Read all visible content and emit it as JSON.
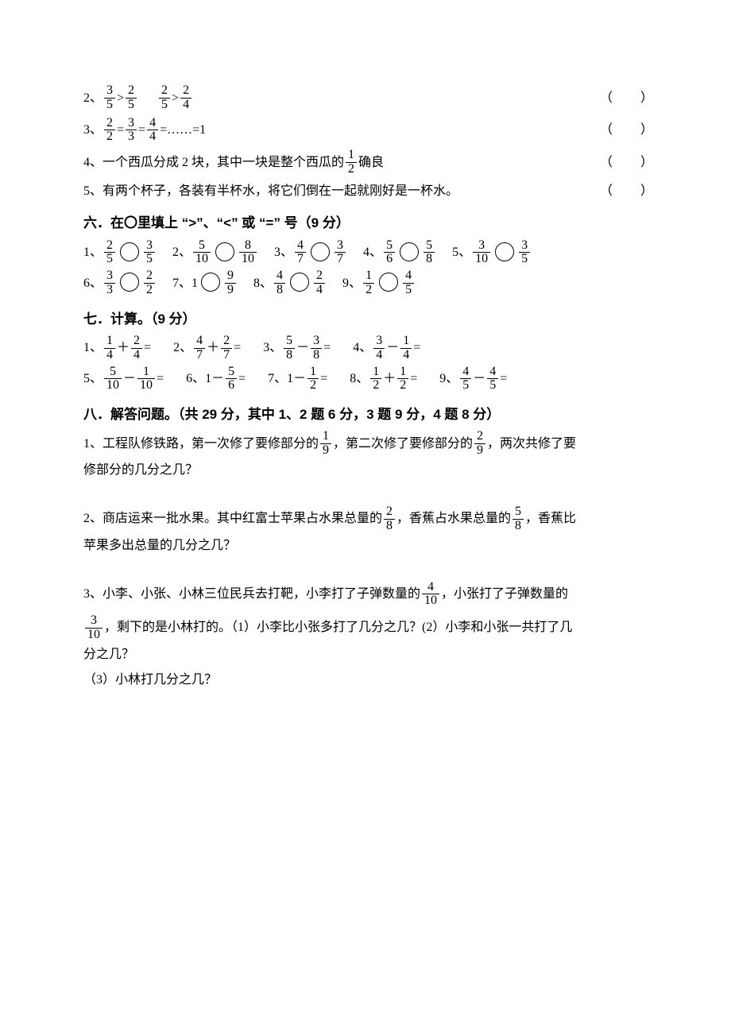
{
  "tf": {
    "q2_label": "2、",
    "q2_a_num": "3",
    "q2_a_den": "5",
    "q2_op1": ">",
    "q2_b_num": "2",
    "q2_b_den": "5",
    "q2_c_num": "2",
    "q2_c_den": "5",
    "q2_op2": ">",
    "q2_d_num": "2",
    "q2_d_den": "4",
    "q3_label": "3、",
    "q3_a_num": "2",
    "q3_a_den": "2",
    "q3_b_num": "3",
    "q3_b_den": "3",
    "q3_c_num": "4",
    "q3_c_den": "4",
    "q3_tail": "=……=1",
    "q3_eq": "=",
    "q4_label": "4、",
    "q4_text_a": "一个西瓜分成 2 块，其中一块是整个西瓜的",
    "q4_num": "1",
    "q4_den": "2",
    "q4_text_b": "确良",
    "q5_label": "5、",
    "q5_text": "有两个杯子，各装有半杯水，将它们倒在一起就刚好是一杯水。"
  },
  "s6": {
    "heading": "六．在〇里填上 “>”、“<” 或 “=” 号（9 分）",
    "items": [
      {
        "label": "1、",
        "an": "2",
        "ad": "5",
        "bn": "3",
        "bd": "5"
      },
      {
        "label": "2、",
        "an": "5",
        "ad": "10",
        "bn": "8",
        "bd": "10"
      },
      {
        "label": "3、",
        "an": "4",
        "ad": "7",
        "bn": "3",
        "bd": "7"
      },
      {
        "label": "4、",
        "an": "5",
        "ad": "6",
        "bn": "5",
        "bd": "8"
      },
      {
        "label": "5、",
        "an": "3",
        "ad": "10",
        "bn": "3",
        "bd": "5"
      },
      {
        "label": "6、",
        "an": "3",
        "ad": "3",
        "bn": "2",
        "bd": "2"
      },
      {
        "label": "7、",
        "left_whole": "1",
        "bn": "9",
        "bd": "9"
      },
      {
        "label": "8、",
        "an": "4",
        "ad": "8",
        "bn": "2",
        "bd": "4"
      },
      {
        "label": "9、",
        "an": "1",
        "ad": "2",
        "bn": "4",
        "bd": "5"
      }
    ]
  },
  "s7": {
    "heading": "七．计算。（9 分）",
    "items": [
      {
        "label": "1、",
        "an": "1",
        "ad": "4",
        "op": "＋",
        "bn": "2",
        "bd": "4"
      },
      {
        "label": "2、",
        "an": "4",
        "ad": "7",
        "op": "＋",
        "bn": "2",
        "bd": "7"
      },
      {
        "label": "3、",
        "an": "5",
        "ad": "8",
        "op": "－",
        "bn": "3",
        "bd": "8"
      },
      {
        "label": "4、",
        "an": "3",
        "ad": "4",
        "op": "－",
        "bn": "1",
        "bd": "4"
      },
      {
        "label": "5、",
        "an": "5",
        "ad": "10",
        "op": "－",
        "bn": "1",
        "bd": "10"
      },
      {
        "label": "6、",
        "left_whole": "1",
        "op": "－",
        "bn": "5",
        "bd": "6"
      },
      {
        "label": "7、",
        "left_whole": "1",
        "op": "－",
        "bn": "1",
        "bd": "2"
      },
      {
        "label": "8、",
        "an": "1",
        "ad": "2",
        "op": "＋",
        "bn": "1",
        "bd": "2"
      },
      {
        "label": "9、",
        "an": "4",
        "ad": "5",
        "op": "－",
        "bn": "4",
        "bd": "5"
      }
    ],
    "eq": "="
  },
  "s8": {
    "heading": "八．解答问题。（共 29 分，其中 1、2 题 6 分，3 题 9 分，4 题 8 分）",
    "q1_label": "1、",
    "q1_a": "工程队修铁路，第一次修了要修部分的",
    "q1_f1n": "1",
    "q1_f1d": "9",
    "q1_b": "，第二次修了要修部分的",
    "q1_f2n": "2",
    "q1_f2d": "9",
    "q1_c": "，两次共修了要",
    "q1_d": "修部分的几分之几？",
    "q2_label": "2、",
    "q2_a": "商店运来一批水果。其中红富士苹果占水果总量的",
    "q2_f1n": "2",
    "q2_f1d": "8",
    "q2_b": "，香蕉占水果总量的",
    "q2_f2n": "5",
    "q2_f2d": "8",
    "q2_c": "，香蕉比",
    "q2_d": "苹果多出总量的几分之几？",
    "q3_label": "3、",
    "q3_a": "小李、小张、小林三位民兵去打靶，小李打了子弹数量的",
    "q3_f1n": "4",
    "q3_f1d": "10",
    "q3_b": "，小张打了子弹数量的",
    "q3_f2n": "3",
    "q3_f2d": "10",
    "q3_c": "，剩下的是小林打的。（1）小李比小张多打了几分之几？(2）小李和小张一共打了几",
    "q3_d": "分之几？",
    "q3_e": "（3）小林打几分之几？"
  }
}
